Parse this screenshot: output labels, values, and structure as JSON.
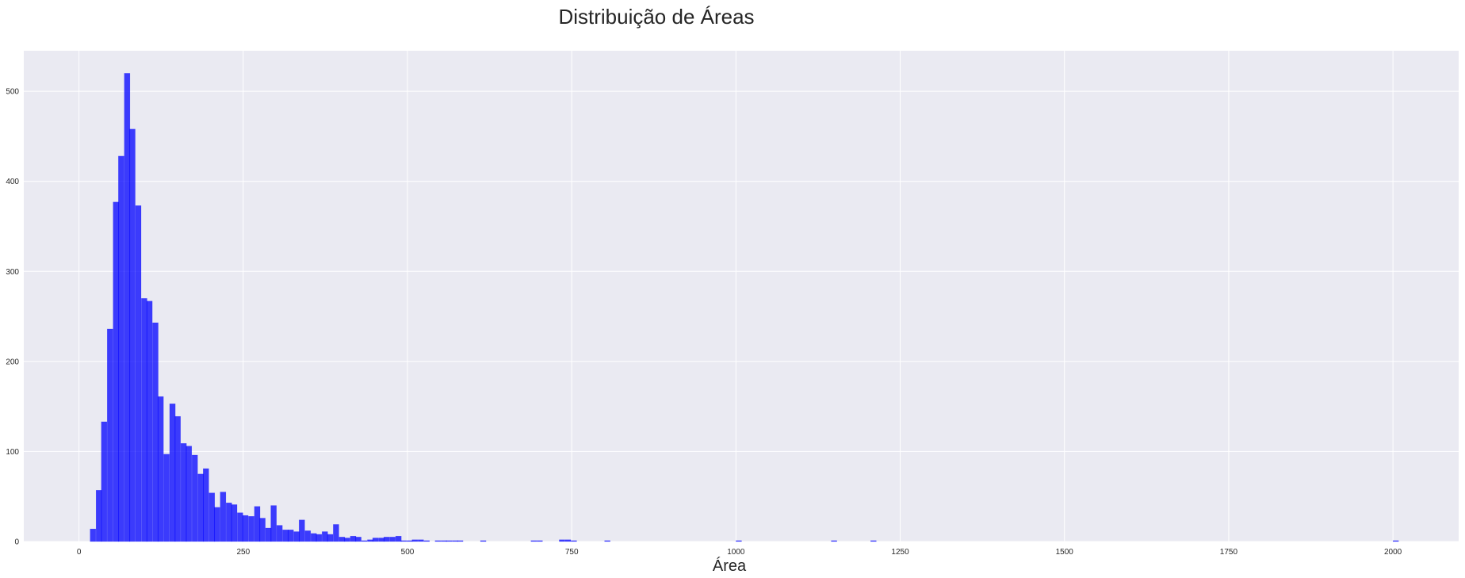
{
  "chart_data": {
    "type": "bar",
    "title": "Distribuição de Áreas",
    "xlabel": "Área",
    "ylabel": "",
    "xlim": [
      -84,
      2100
    ],
    "ylim": [
      0,
      545
    ],
    "grid": true,
    "bar_color": "#0000ff",
    "background_color": "#eaeaf2",
    "grid_color": "#ffffff",
    "x_ticks": [
      0,
      250,
      500,
      750,
      1000,
      1250,
      1500,
      1750,
      2000
    ],
    "y_ticks": [
      0,
      100,
      200,
      300,
      400,
      500
    ],
    "x_tick_labels": [
      "0",
      "250",
      "500",
      "750",
      "1000",
      "1250",
      "1500",
      "1750",
      "2000"
    ],
    "y_tick_labels": [
      "0",
      "100",
      "200",
      "300",
      "400",
      "500"
    ],
    "bin_width": 8.6,
    "bins": [
      [
        17,
        14
      ],
      [
        26,
        57
      ],
      [
        34,
        133
      ],
      [
        43,
        236
      ],
      [
        52,
        377
      ],
      [
        60,
        428
      ],
      [
        69,
        520
      ],
      [
        77,
        458
      ],
      [
        86,
        373
      ],
      [
        95,
        270
      ],
      [
        103,
        267
      ],
      [
        112,
        243
      ],
      [
        120,
        161
      ],
      [
        129,
        97
      ],
      [
        138,
        153
      ],
      [
        146,
        139
      ],
      [
        155,
        109
      ],
      [
        163,
        106
      ],
      [
        172,
        96
      ],
      [
        181,
        75
      ],
      [
        189,
        81
      ],
      [
        198,
        54
      ],
      [
        206,
        38
      ],
      [
        215,
        55
      ],
      [
        224,
        43
      ],
      [
        232,
        41
      ],
      [
        241,
        32
      ],
      [
        249,
        29
      ],
      [
        258,
        28
      ],
      [
        267,
        39
      ],
      [
        275,
        26
      ],
      [
        284,
        15
      ],
      [
        292,
        40
      ],
      [
        301,
        18
      ],
      [
        310,
        13
      ],
      [
        318,
        13
      ],
      [
        327,
        11
      ],
      [
        335,
        24
      ],
      [
        344,
        12
      ],
      [
        353,
        9
      ],
      [
        361,
        8
      ],
      [
        370,
        11
      ],
      [
        378,
        8
      ],
      [
        387,
        19
      ],
      [
        396,
        5
      ],
      [
        404,
        4
      ],
      [
        413,
        6
      ],
      [
        421,
        5
      ],
      [
        430,
        1
      ],
      [
        439,
        2
      ],
      [
        447,
        4
      ],
      [
        456,
        4
      ],
      [
        464,
        5
      ],
      [
        473,
        5
      ],
      [
        482,
        6
      ],
      [
        490,
        1
      ],
      [
        499,
        1
      ],
      [
        507,
        2
      ],
      [
        516,
        2
      ],
      [
        525,
        1
      ],
      [
        542,
        1
      ],
      [
        551,
        1
      ],
      [
        559,
        1
      ],
      [
        568,
        1
      ],
      [
        576,
        1
      ],
      [
        611,
        1
      ],
      [
        688,
        1
      ],
      [
        697,
        1
      ],
      [
        731,
        2
      ],
      [
        740,
        2
      ],
      [
        749,
        1
      ],
      [
        800,
        1
      ],
      [
        1000,
        1
      ],
      [
        1145,
        1
      ],
      [
        1205,
        1
      ],
      [
        2000,
        1
      ]
    ]
  }
}
